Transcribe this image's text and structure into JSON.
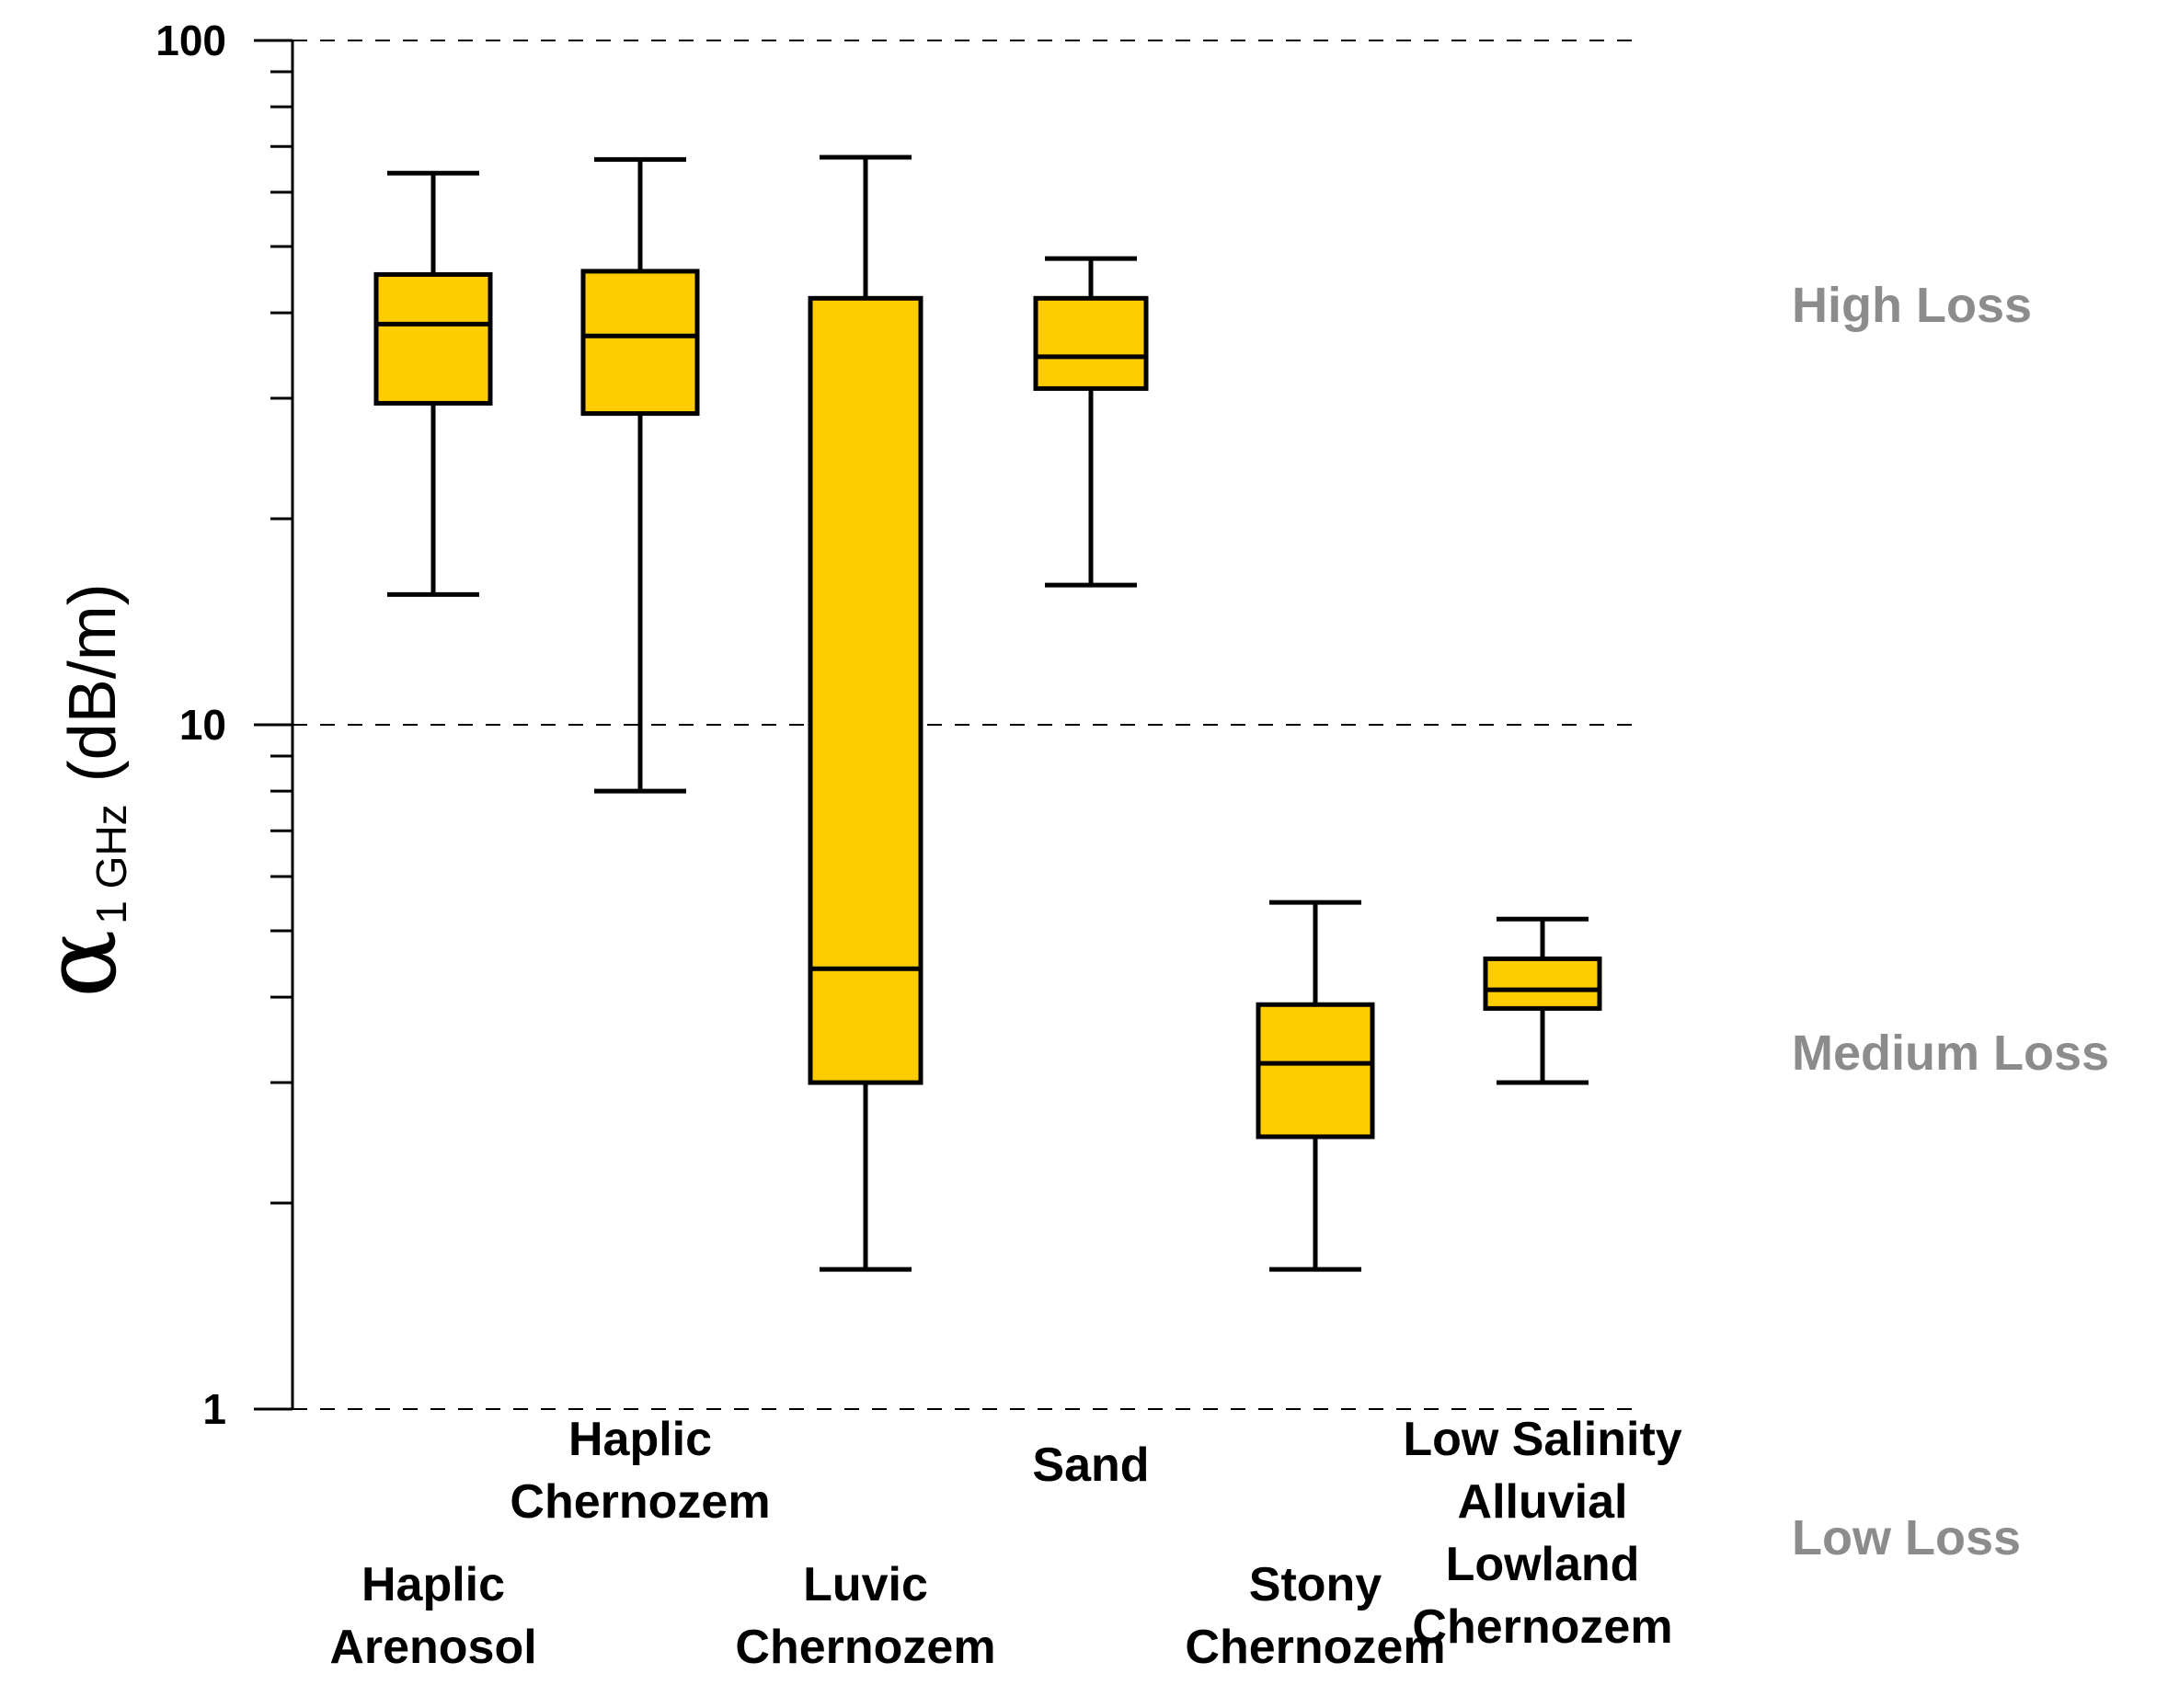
{
  "chart_data": {
    "type": "box",
    "ylabel": {
      "symbol": "α",
      "subscript": "1 GHz",
      "unit": "(dB/m)"
    },
    "yscale": "log",
    "ylim": [
      1,
      100
    ],
    "y_ticks": [
      {
        "value": 1,
        "label": "1"
      },
      {
        "value": 10,
        "label": "10"
      },
      {
        "value": 100,
        "label": "100"
      }
    ],
    "grid": "dashed horizontal lines at 1, 10, 100",
    "box_color": "#FFCC00",
    "line_color": "#000000",
    "categories": [
      {
        "name": "Haplic Arenosol",
        "lines": [
          "Haplic",
          "Arenosol"
        ],
        "label_row": "lower",
        "min": 15.5,
        "q1": 29.5,
        "median": 38.5,
        "q3": 45.5,
        "max": 64
      },
      {
        "name": "Haplic Chernozem",
        "lines": [
          "Haplic",
          "Chernozem"
        ],
        "label_row": "upper",
        "min": 8,
        "q1": 28.5,
        "median": 37,
        "q3": 46,
        "max": 67
      },
      {
        "name": "Luvic Chernozem",
        "lines": [
          "Luvic",
          "Chernozem"
        ],
        "label_row": "lower",
        "min": 1.6,
        "q1": 3,
        "median": 4.4,
        "q3": 42,
        "max": 67.5
      },
      {
        "name": "Sand",
        "lines": [
          "Sand"
        ],
        "label_row": "upper",
        "min": 16,
        "q1": 31,
        "median": 34.5,
        "q3": 42,
        "max": 48
      },
      {
        "name": "Stony Chernozem",
        "lines": [
          "Stony",
          "Chernozem"
        ],
        "label_row": "lower",
        "min": 1.6,
        "q1": 2.5,
        "median": 3.2,
        "q3": 3.9,
        "max": 5.5
      },
      {
        "name": "Low Salinity Alluvial Lowland Chernozem",
        "lines": [
          "Low Salinity",
          "Alluvial",
          "Lowland",
          "Chernozem"
        ],
        "label_row": "upper",
        "min": 3,
        "q1": 3.85,
        "median": 4.1,
        "q3": 4.55,
        "max": 5.2
      }
    ],
    "annotations": [
      "High Loss",
      "Medium Loss",
      "Low Loss"
    ]
  }
}
